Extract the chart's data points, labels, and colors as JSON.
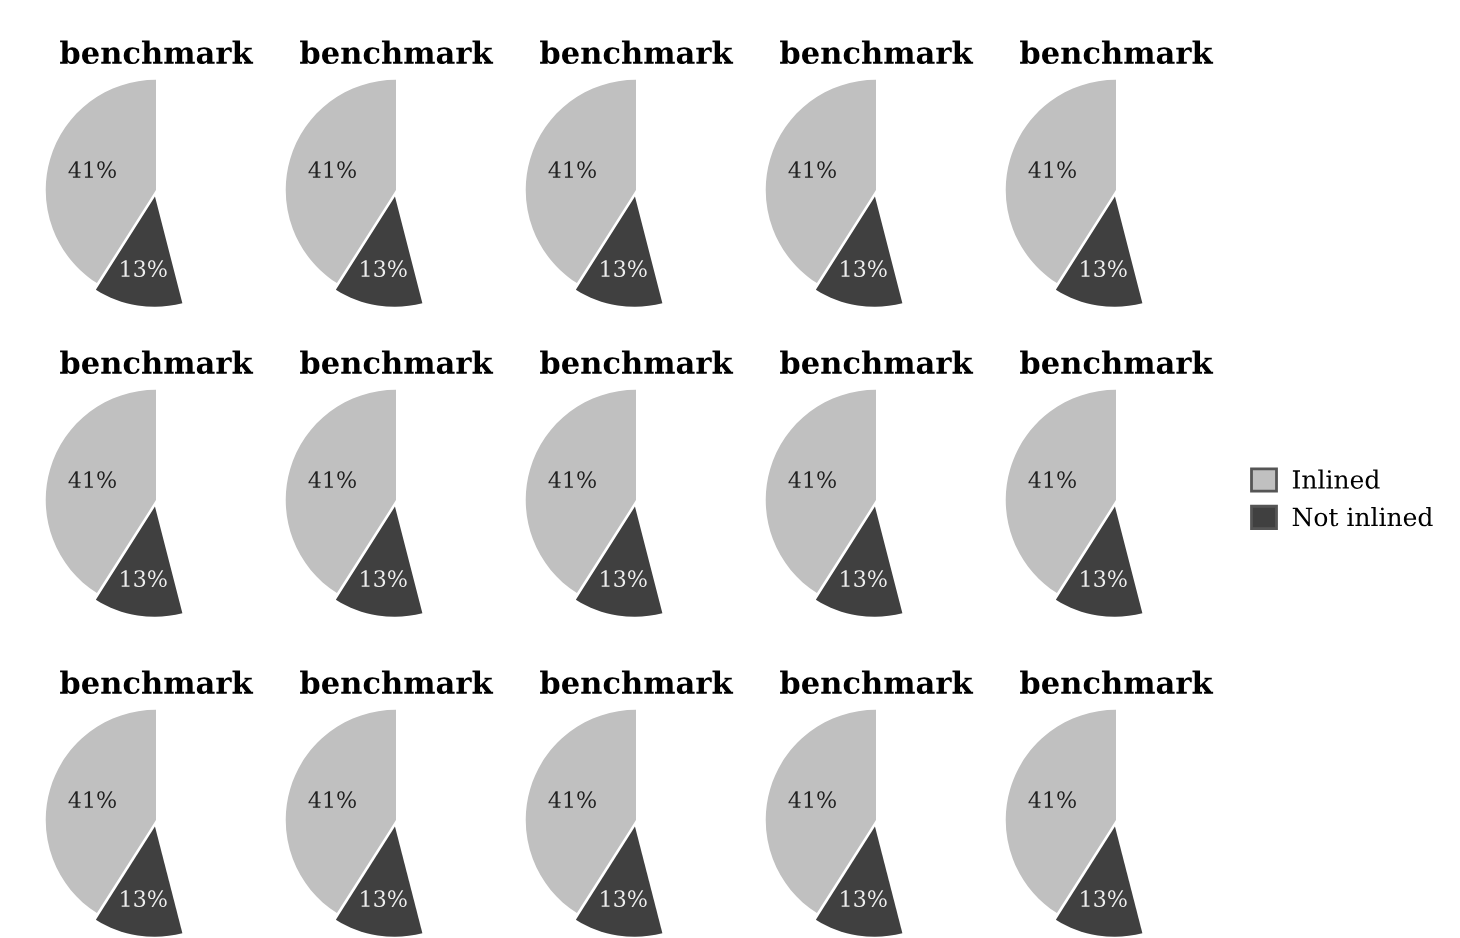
{
  "chart_data": [
    {
      "type": "pie",
      "title": "benchmark",
      "categories": [
        null,
        null
      ],
      "values": [
        41,
        13
      ],
      "colors": [
        "#c0c0c0",
        "#404040"
      ],
      "value_labels": [
        "41%",
        "13%"
      ]
    },
    {
      "type": "pie",
      "title": "benchmark",
      "categories": [
        null,
        null
      ],
      "values": [
        41,
        13
      ],
      "colors": [
        "#c0c0c0",
        "#404040"
      ],
      "value_labels": [
        "41%",
        "13%"
      ]
    },
    {
      "type": "pie",
      "title": "benchmark",
      "categories": [
        null,
        null
      ],
      "values": [
        41,
        13
      ],
      "colors": [
        "#c0c0c0",
        "#404040"
      ],
      "value_labels": [
        "41%",
        "13%"
      ]
    },
    {
      "type": "pie",
      "title": "benchmark",
      "categories": [
        null,
        null
      ],
      "values": [
        41,
        13
      ],
      "colors": [
        "#c0c0c0",
        "#404040"
      ],
      "value_labels": [
        "41%",
        "13%"
      ]
    },
    {
      "type": "pie",
      "title": "benchmark",
      "categories": [
        null,
        null
      ],
      "values": [
        41,
        13
      ],
      "colors": [
        "#c0c0c0",
        "#404040"
      ],
      "value_labels": [
        "41%",
        "13%"
      ]
    },
    {
      "type": "pie",
      "title": "benchmark",
      "categories": [
        null,
        null
      ],
      "values": [
        41,
        13
      ],
      "colors": [
        "#c0c0c0",
        "#404040"
      ],
      "value_labels": [
        "41%",
        "13%"
      ]
    },
    {
      "type": "pie",
      "title": "benchmark",
      "categories": [
        null,
        null
      ],
      "values": [
        41,
        13
      ],
      "colors": [
        "#c0c0c0",
        "#404040"
      ],
      "value_labels": [
        "41%",
        "13%"
      ]
    },
    {
      "type": "pie",
      "title": "benchmark",
      "categories": [
        null,
        null
      ],
      "values": [
        41,
        13
      ],
      "colors": [
        "#c0c0c0",
        "#404040"
      ],
      "value_labels": [
        "41%",
        "13%"
      ]
    },
    {
      "type": "pie",
      "title": "benchmark",
      "categories": [
        null,
        null
      ],
      "values": [
        41,
        13
      ],
      "colors": [
        "#c0c0c0",
        "#404040"
      ],
      "value_labels": [
        "41%",
        "13%"
      ]
    },
    {
      "type": "pie",
      "title": "benchmark",
      "categories": [
        "Inlined",
        "Not inlined"
      ],
      "values": [
        41,
        13
      ],
      "colors": [
        "#c0c0c0",
        "#404040"
      ],
      "value_labels": [
        "41%",
        "13%"
      ],
      "legend": "right"
    },
    {
      "type": "pie",
      "title": "benchmark",
      "categories": [
        null,
        null
      ],
      "values": [
        41,
        13
      ],
      "colors": [
        "#c0c0c0",
        "#404040"
      ],
      "value_labels": [
        "41%",
        "13%"
      ]
    },
    {
      "type": "pie",
      "title": "benchmark",
      "categories": [
        null,
        null
      ],
      "values": [
        41,
        13
      ],
      "colors": [
        "#c0c0c0",
        "#404040"
      ],
      "value_labels": [
        "41%",
        "13%"
      ]
    },
    {
      "type": "pie",
      "title": "benchmark",
      "categories": [
        null,
        null
      ],
      "values": [
        41,
        13
      ],
      "colors": [
        "#c0c0c0",
        "#404040"
      ],
      "value_labels": [
        "41%",
        "13%"
      ]
    },
    {
      "type": "pie",
      "title": "benchmark",
      "categories": [
        null,
        null
      ],
      "values": [
        41,
        13
      ],
      "colors": [
        "#c0c0c0",
        "#404040"
      ],
      "value_labels": [
        "41%",
        "13%"
      ]
    },
    {
      "type": "pie",
      "title": "benchmark",
      "categories": [
        null,
        null
      ],
      "values": [
        41,
        13
      ],
      "colors": [
        "#c0c0c0",
        "#404040"
      ],
      "value_labels": [
        "41%",
        "13%"
      ]
    }
  ]
}
